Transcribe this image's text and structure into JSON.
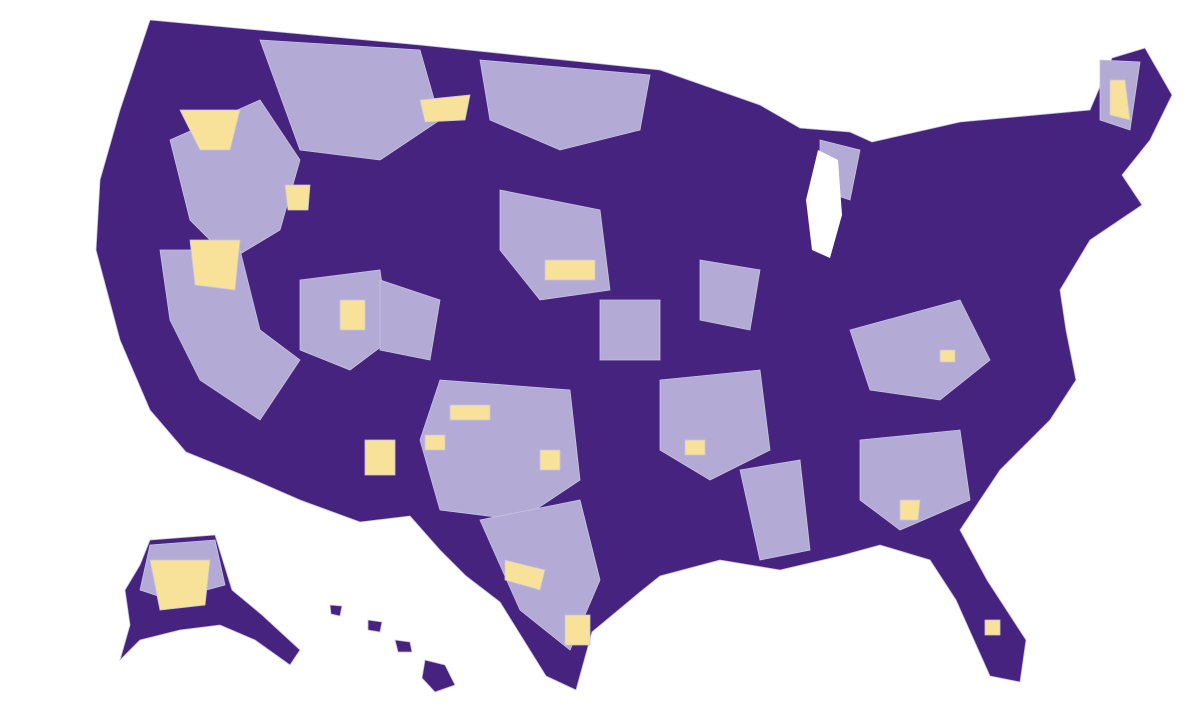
{
  "map": {
    "colors": [
      "#45237f",
      "#b3aad6",
      "#f8e29a"
    ],
    "border": "#c9c4e2"
  }
}
